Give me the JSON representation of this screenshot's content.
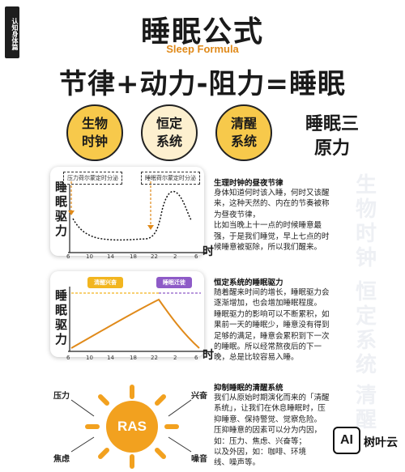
{
  "badge": "认知身体篇",
  "title": "睡眠公式",
  "subtitle": "Sleep Formula",
  "formula": "节律+动力-阻力=睡眠",
  "circles": [
    "生物时钟",
    "恒定系统",
    "清醒系统"
  ],
  "three_principles": "睡眠三原力",
  "y_label": "睡眠驱力",
  "time_label": "时",
  "chart1": {
    "tag_left": "压力荷尔蒙定时分泌",
    "tag_right": "睡眠荷尔蒙定时分泌",
    "x_ticks": [
      "6",
      "10",
      "14",
      "18",
      "22",
      "2",
      "6"
    ]
  },
  "chart2": {
    "pill_awake": "清醒兴奋",
    "pill_sleep": "睡眠迁徙",
    "x_ticks": [
      "6",
      "10",
      "14",
      "18",
      "22",
      "2",
      "6"
    ]
  },
  "section1": {
    "title": "生理时钟的昼夜节律",
    "lines": [
      "身体知道何时该入睡，何时又该醒",
      "来，这种天然的、内在的节奏被称",
      "为昼夜节律，",
      "比如当晚上十一点的时候睡意最",
      "强，于是我们睡觉，早上七点的时",
      "候睡意被驱除，所以我们醒来。"
    ],
    "watermark": "生物时钟"
  },
  "section2": {
    "title": "恒定系统的睡眠驱力",
    "lines": [
      "随着醒来时间的增长，睡眠驱力会",
      "逐渐增加，也会增加睡眠程度。",
      "睡眠驱力的影响可以不断累积，如",
      "果前一天的睡眠少，睡意没有得到",
      "足够的满足，睡意会累积到下一次",
      "的睡眠。所以经常熬夜后的下一",
      "晚，总是比较容易入睡。"
    ],
    "watermark": "恒定系统"
  },
  "section3": {
    "title": "抑制睡眠的清醒系统",
    "lines": [
      "我们从原始时期演化而来的「清醒",
      "系统」，让我们在休息睡眠时，压",
      "抑睡意、保持警觉、觉察危险。",
      "压抑睡意的因素可以分为内因，",
      "如：压力、焦虑、兴奋等；",
      "以及外因，如：咖啡、环境",
      "线、噪声等。"
    ],
    "watermark": "清醒"
  },
  "ras": {
    "center": "RAS",
    "factors": [
      "压力",
      "兴奋",
      "焦虑",
      "噪音"
    ]
  },
  "logo": {
    "mark": "AI",
    "name": "树叶云"
  }
}
